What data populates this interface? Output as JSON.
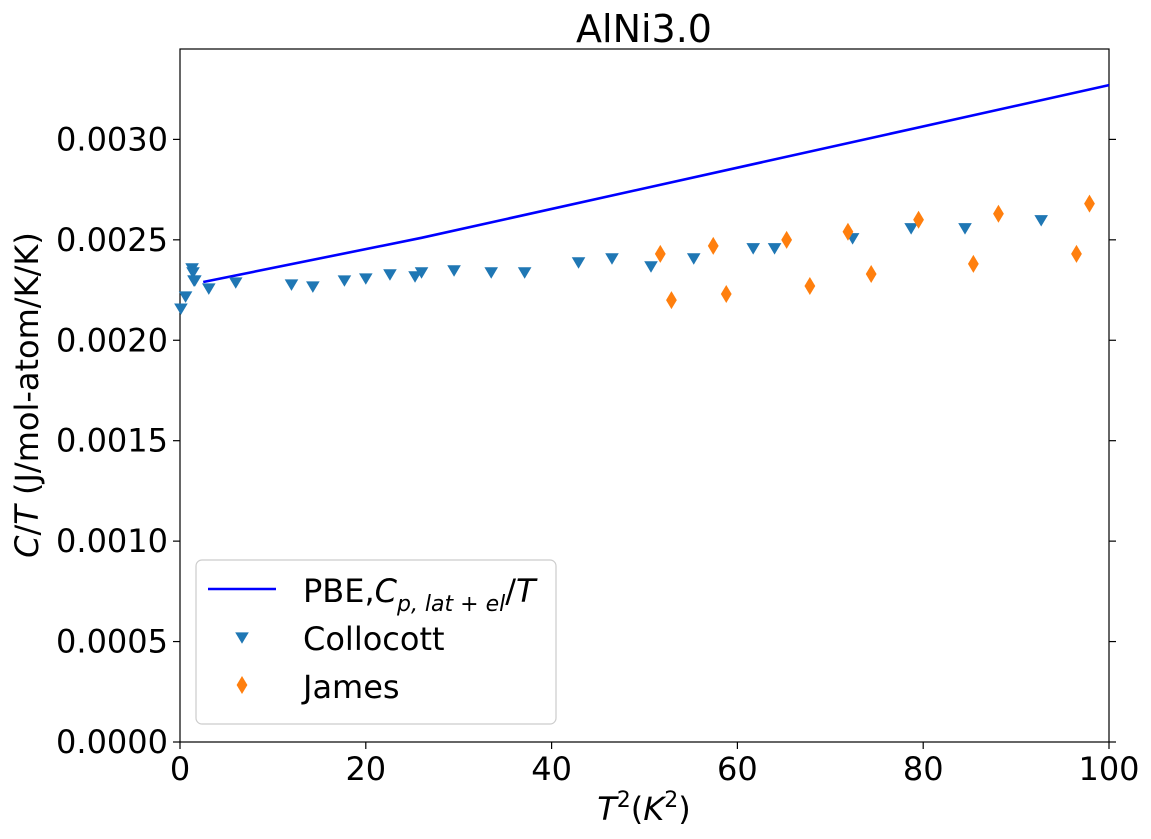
{
  "chart_data": {
    "type": "scatter",
    "title": "AlNi3.0",
    "xlabel_html": "T²(K²)",
    "ylabel": "C/T (J/mol-atom/K/K)",
    "xlim": [
      0,
      100
    ],
    "ylim": [
      0,
      0.00345
    ],
    "xticks": [
      0,
      20,
      40,
      60,
      80,
      100
    ],
    "xtick_labels": [
      "0",
      "20",
      "40",
      "60",
      "80",
      "100"
    ],
    "yticks": [
      0,
      0.0005,
      0.001,
      0.0015,
      0.002,
      0.0025,
      0.003
    ],
    "ytick_labels": [
      "0.0000",
      "0.0005",
      "0.0010",
      "0.0015",
      "0.0020",
      "0.0025",
      "0.0030"
    ],
    "legend_position": "lower-left",
    "series": [
      {
        "name": "PBE,Cp,lat+el/T",
        "kind": "line",
        "color": "#0000ff",
        "x": [
          2.5,
          26,
          100
        ],
        "y": [
          0.00229,
          0.00251,
          0.00327
        ]
      },
      {
        "name": "Collocott",
        "kind": "marker",
        "marker": "triangle-down",
        "color": "#1f77b4",
        "x": [
          0.1,
          0.6,
          1.3,
          1.4,
          1.5,
          1.6,
          3.1,
          6.0,
          12.0,
          14.3,
          17.7,
          20.0,
          22.6,
          25.3,
          26.0,
          29.5,
          33.5,
          37.1,
          42.9,
          46.5,
          50.7,
          55.3,
          61.7,
          64.0,
          72.4,
          78.7,
          84.5,
          92.7
        ],
        "y": [
          0.00216,
          0.00222,
          0.00236,
          0.00234,
          0.0023,
          0.0023,
          0.00226,
          0.00229,
          0.00228,
          0.00227,
          0.0023,
          0.00231,
          0.00233,
          0.00232,
          0.00234,
          0.00235,
          0.00234,
          0.00234,
          0.00239,
          0.00241,
          0.00237,
          0.00241,
          0.00246,
          0.00246,
          0.00251,
          0.00256,
          0.00256,
          0.0026
        ]
      },
      {
        "name": "James",
        "kind": "marker",
        "marker": "thin-diamond",
        "color": "#ff7f0e",
        "x": [
          51.7,
          52.9,
          57.4,
          58.8,
          65.3,
          67.8,
          71.9,
          74.4,
          79.5,
          85.4,
          88.1,
          96.5,
          97.9
        ],
        "y": [
          0.00243,
          0.0022,
          0.00247,
          0.00223,
          0.0025,
          0.00227,
          0.00254,
          0.00233,
          0.0026,
          0.00238,
          0.00263,
          0.00243,
          0.00268
        ]
      }
    ]
  }
}
